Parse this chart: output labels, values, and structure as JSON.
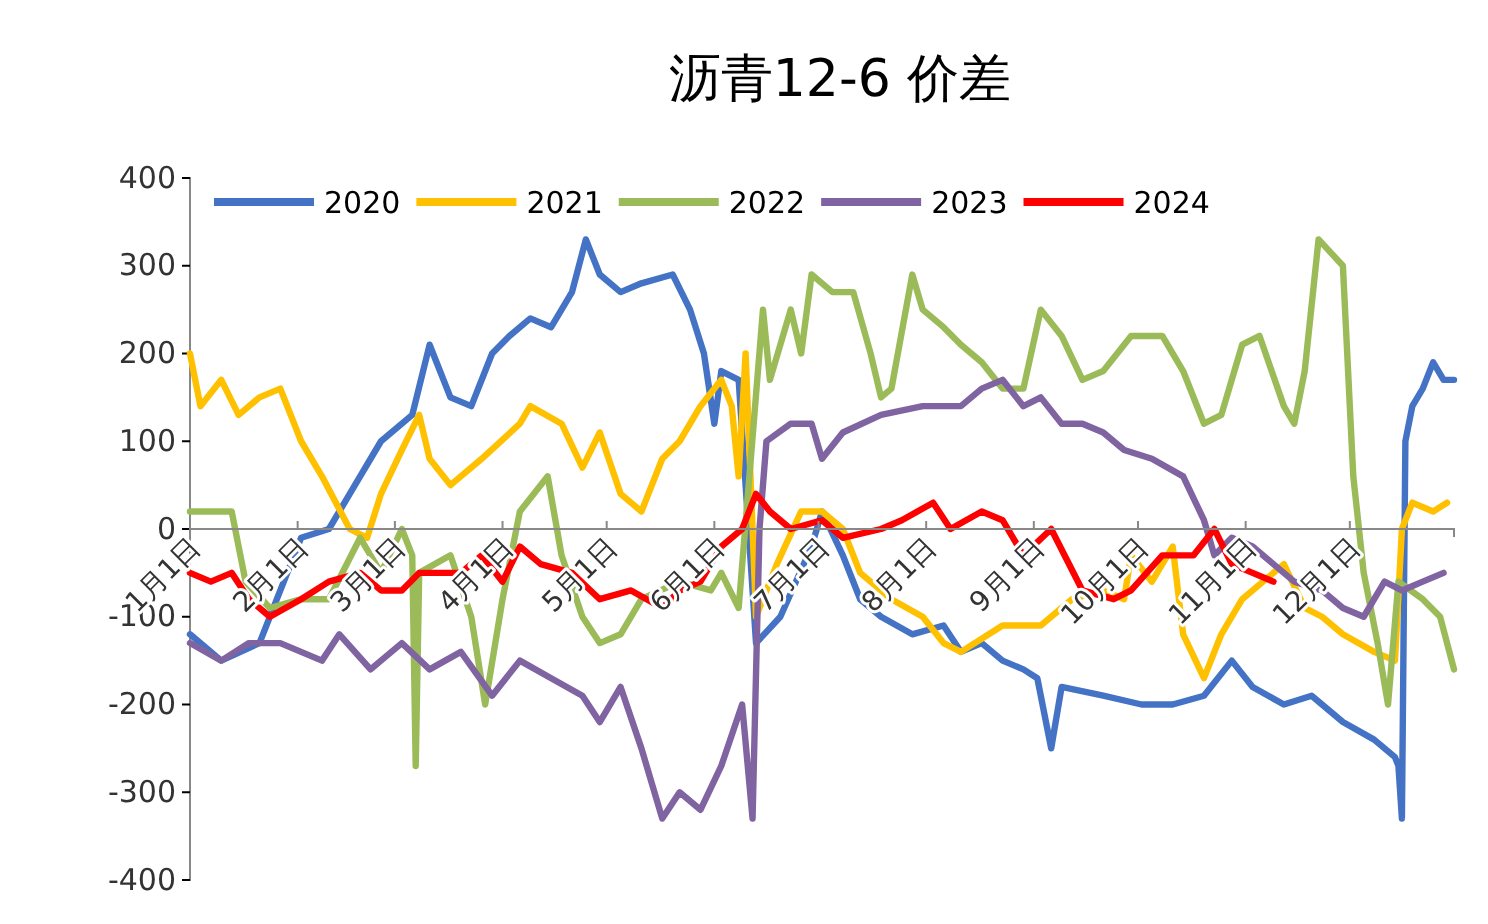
{
  "chart_data": {
    "type": "line",
    "title": "沥青12-6 价差",
    "legend": "top",
    "grid": false,
    "marker": "none",
    "line_style": "solid",
    "xlim": [
      "--01-01",
      "--12-31"
    ],
    "xticks": [
      {
        "value": "--01-01",
        "label": "1月1日"
      },
      {
        "value": "--02-01",
        "label": "2月1日"
      },
      {
        "value": "--03-01",
        "label": "3月1日"
      },
      {
        "value": "--04-01",
        "label": "4月1日"
      },
      {
        "value": "--05-01",
        "label": "5月1日"
      },
      {
        "value": "--06-01",
        "label": "6月1日"
      },
      {
        "value": "--07-01",
        "label": "7月1日"
      },
      {
        "value": "--08-01",
        "label": "8月1日"
      },
      {
        "value": "--09-01",
        "label": "9月1日"
      },
      {
        "value": "--10-01",
        "label": "10月1日"
      },
      {
        "value": "--11-01",
        "label": "11月1日"
      },
      {
        "value": "--12-01",
        "label": "12月1日"
      }
    ],
    "ylim": [
      -400,
      400
    ],
    "yticks": [
      -400,
      -300,
      -200,
      -100,
      0,
      100,
      200,
      300,
      400
    ],
    "series": [
      {
        "name": "2020",
        "color": "#4472c4",
        "x": [
          "--01-01",
          "--01-10",
          "--01-21",
          "--02-02",
          "--02-10",
          "--02-16",
          "--02-25",
          "--03-06",
          "--03-11",
          "--03-17",
          "--03-23",
          "--03-29",
          "--04-03",
          "--04-09",
          "--04-15",
          "--04-21",
          "--04-25",
          "--04-29",
          "--05-05",
          "--05-11",
          "--05-20",
          "--05-25",
          "--05-29",
          "--06-01",
          "--06-03",
          "--06-08",
          "--06-13",
          "--06-20",
          "--06-29",
          "--07-02",
          "--07-08",
          "--07-13",
          "--07-19",
          "--07-28",
          "--08-06",
          "--08-11",
          "--08-17",
          "--08-23",
          "--08-29",
          "--09-02",
          "--09-06",
          "--09-09",
          "--09-21",
          "--10-02",
          "--10-11",
          "--10-20",
          "--10-28",
          "--11-03",
          "--11-12",
          "--11-20",
          "--11-29",
          "--12-08",
          "--12-14",
          "--12-15",
          "--12-16",
          "--12-17",
          "--12-19",
          "--12-22",
          "--12-25",
          "--12-28",
          "--12-31"
        ],
        "values": [
          -120,
          -150,
          -130,
          -10,
          0,
          40,
          100,
          130,
          210,
          150,
          140,
          200,
          220,
          240,
          230,
          270,
          330,
          290,
          270,
          280,
          290,
          250,
          200,
          120,
          180,
          170,
          -130,
          -100,
          -20,
          20,
          -30,
          -80,
          -100,
          -120,
          -110,
          -140,
          -130,
          -150,
          -160,
          -170,
          -250,
          -180,
          -190,
          -200,
          -200,
          -190,
          -150,
          -180,
          -200,
          -190,
          -220,
          -240,
          -260,
          -270,
          -330,
          100,
          140,
          160,
          190,
          170,
          170
        ]
      },
      {
        "name": "2021",
        "color": "#ffc000",
        "x": [
          "--01-01",
          "--01-04",
          "--01-10",
          "--01-15",
          "--01-21",
          "--01-27",
          "--02-02",
          "--02-08",
          "--02-16",
          "--02-21",
          "--02-25",
          "--03-03",
          "--03-08",
          "--03-11",
          "--03-17",
          "--03-26",
          "--04-06",
          "--04-09",
          "--04-18",
          "--04-24",
          "--04-29",
          "--05-05",
          "--05-11",
          "--05-17",
          "--05-22",
          "--05-28",
          "--06-03",
          "--06-06",
          "--06-08",
          "--06-10",
          "--06-13",
          "--06-19",
          "--06-26",
          "--07-02",
          "--07-08",
          "--07-13",
          "--07-22",
          "--07-31",
          "--08-06",
          "--08-11",
          "--08-23",
          "--09-03",
          "--09-12",
          "--09-21",
          "--09-27",
          "--09-29",
          "--10-05",
          "--10-11",
          "--10-14",
          "--10-20",
          "--10-25",
          "--10-31",
          "--11-06",
          "--11-12",
          "--11-18",
          "--11-23",
          "--11-29",
          "--12-08",
          "--12-14",
          "--12-16",
          "--12-19",
          "--12-25",
          "--12-29"
        ],
        "values": [
          200,
          140,
          170,
          130,
          150,
          160,
          100,
          60,
          0,
          -10,
          40,
          90,
          130,
          80,
          50,
          80,
          120,
          140,
          120,
          70,
          110,
          40,
          20,
          80,
          100,
          140,
          170,
          140,
          60,
          200,
          -100,
          -40,
          20,
          20,
          0,
          -50,
          -80,
          -100,
          -130,
          -140,
          -110,
          -110,
          -80,
          -70,
          -80,
          -30,
          -60,
          -20,
          -120,
          -170,
          -120,
          -80,
          -60,
          -40,
          -90,
          -100,
          -120,
          -140,
          -150,
          0,
          30,
          20,
          30
        ]
      },
      {
        "name": "2022",
        "color": "#9bbb59",
        "x": [
          "--01-01",
          "--01-13",
          "--01-17",
          "--01-24",
          "--02-02",
          "--02-10",
          "--02-19",
          "--02-25",
          "--03-03",
          "--03-06",
          "--03-07",
          "--03-08",
          "--03-17",
          "--03-23",
          "--03-27",
          "--04-01",
          "--04-06",
          "--04-14",
          "--04-18",
          "--04-24",
          "--04-29",
          "--05-05",
          "--05-11",
          "--05-22",
          "--05-31",
          "--06-03",
          "--06-08",
          "--06-15",
          "--06-17",
          "--06-23",
          "--06-26",
          "--06-29",
          "--07-05",
          "--07-11",
          "--07-16",
          "--07-19",
          "--07-22",
          "--07-28",
          "--07-31",
          "--08-06",
          "--08-11",
          "--08-17",
          "--08-23",
          "--08-29",
          "--09-03",
          "--09-09",
          "--09-15",
          "--09-21",
          "--09-29",
          "--10-08",
          "--10-14",
          "--10-20",
          "--10-25",
          "--10-31",
          "--11-05",
          "--11-12",
          "--11-15",
          "--11-18",
          "--11-22",
          "--11-29",
          "--12-02",
          "--12-05",
          "--12-09",
          "--12-12",
          "--12-15",
          "--12-22",
          "--12-27",
          "--12-31"
        ],
        "values": [
          20,
          20,
          -60,
          -90,
          -80,
          -80,
          -10,
          -50,
          0,
          -30,
          -270,
          -50,
          -30,
          -100,
          -200,
          -80,
          20,
          60,
          -30,
          -100,
          -130,
          -120,
          -80,
          -60,
          -70,
          -50,
          -90,
          250,
          170,
          250,
          200,
          290,
          270,
          270,
          200,
          150,
          160,
          290,
          250,
          230,
          210,
          190,
          160,
          160,
          250,
          220,
          170,
          180,
          220,
          220,
          180,
          120,
          130,
          210,
          220,
          140,
          120,
          180,
          330,
          300,
          60,
          -50,
          -130,
          -200,
          -60,
          -80,
          -100,
          -160
        ]
      },
      {
        "name": "2023",
        "color": "#8064a2",
        "x": [
          "--01-01",
          "--01-10",
          "--01-18",
          "--01-27",
          "--02-08",
          "--02-13",
          "--02-22",
          "--03-03",
          "--03-11",
          "--03-20",
          "--03-29",
          "--04-06",
          "--04-15",
          "--04-24",
          "--04-29",
          "--05-05",
          "--05-11",
          "--05-17",
          "--05-22",
          "--05-28",
          "--06-03",
          "--06-09",
          "--06-12",
          "--06-14",
          "--06-16",
          "--06-23",
          "--06-29",
          "--07-02",
          "--07-08",
          "--07-19",
          "--07-31",
          "--08-11",
          "--08-17",
          "--08-23",
          "--08-29",
          "--09-03",
          "--09-09",
          "--09-15",
          "--09-21",
          "--09-27",
          "--10-05",
          "--10-14",
          "--10-20",
          "--10-23",
          "--10-28",
          "--11-03",
          "--11-09",
          "--11-15",
          "--11-23",
          "--11-29",
          "--12-05",
          "--12-11",
          "--12-16",
          "--12-22",
          "--12-28"
        ],
        "values": [
          -130,
          -150,
          -130,
          -130,
          -150,
          -120,
          -160,
          -130,
          -160,
          -140,
          -190,
          -150,
          -170,
          -190,
          -220,
          -180,
          -250,
          -330,
          -300,
          -320,
          -270,
          -200,
          -330,
          0,
          100,
          120,
          120,
          80,
          110,
          130,
          140,
          140,
          160,
          170,
          140,
          150,
          120,
          120,
          110,
          90,
          80,
          60,
          10,
          -30,
          -10,
          -20,
          -40,
          -60,
          -70,
          -90,
          -100,
          -60,
          -70,
          -60,
          -50
        ]
      },
      {
        "name": "2024",
        "color": "#ff0000",
        "x": [
          "--01-01",
          "--01-07",
          "--01-13",
          "--01-18",
          "--01-24",
          "--02-02",
          "--02-10",
          "--02-19",
          "--02-25",
          "--03-03",
          "--03-08",
          "--03-20",
          "--03-26",
          "--04-01",
          "--04-06",
          "--04-12",
          "--04-21",
          "--04-29",
          "--05-08",
          "--05-17",
          "--05-22",
          "--05-28",
          "--06-03",
          "--06-09",
          "--06-13",
          "--06-17",
          "--06-23",
          "--07-02",
          "--07-08",
          "--07-19",
          "--07-25",
          "--08-03",
          "--08-08",
          "--08-17",
          "--08-23",
          "--08-29",
          "--09-06",
          "--09-15",
          "--09-24",
          "--09-29",
          "--10-08",
          "--10-17",
          "--10-23",
          "--10-28",
          "--11-03",
          "--11-09"
        ],
        "values": [
          -50,
          -60,
          -50,
          -80,
          -100,
          -80,
          -60,
          -50,
          -70,
          -70,
          -50,
          -50,
          -30,
          -60,
          -20,
          -40,
          -50,
          -80,
          -70,
          -90,
          -70,
          -60,
          -20,
          0,
          40,
          20,
          0,
          10,
          -10,
          0,
          10,
          30,
          0,
          20,
          10,
          -30,
          0,
          -70,
          -80,
          -70,
          -30,
          -30,
          0,
          -40,
          -50,
          -60
        ]
      }
    ]
  }
}
